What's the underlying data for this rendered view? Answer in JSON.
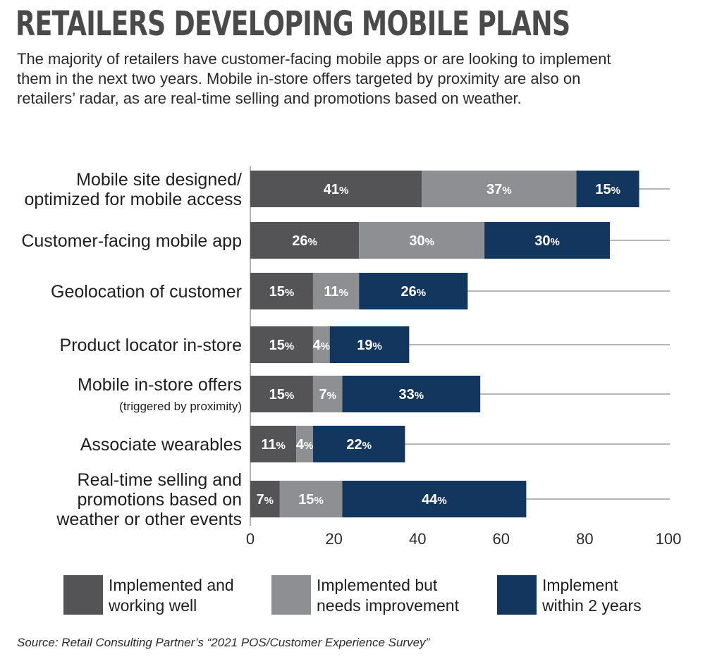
{
  "title": "RETAILERS DEVELOPING MOBILE PLANS",
  "subtitle": "The majority of retailers have customer-facing mobile apps or are looking to implement them in the next two years. Mobile in-store offers targeted by proximity are also on retailers’ radar, as are real-time selling and promotions based on weather.",
  "source": "Source: Retail Consulting Partner’s “2021 POS/Customer Experience Survey”",
  "chart_data": {
    "type": "bar",
    "orientation": "horizontal",
    "stacked": true,
    "categories": [
      "Mobile site designed/ optimized for mobile access",
      "Customer-facing mobile app",
      "Geolocation of customer",
      "Product locator in-store",
      "Mobile in-store offers (triggered by proximity)",
      "Associate wearables",
      "Real-time selling and promotions based on weather or other events"
    ],
    "category_lines": [
      [
        "Mobile site designed/",
        "optimized for mobile access"
      ],
      [
        "Customer-facing mobile app"
      ],
      [
        "Geolocation of customer"
      ],
      [
        "Product locator in-store"
      ],
      [
        "Mobile in-store offers",
        "(triggered by proximity)"
      ],
      [
        "Associate wearables"
      ],
      [
        "Real-time selling and",
        "promotions based on",
        "weather or other events"
      ]
    ],
    "series": [
      {
        "name": "Implemented and working well",
        "color": "#545456",
        "values": [
          41,
          26,
          15,
          15,
          15,
          11,
          7
        ]
      },
      {
        "name": "Implemented but needs improvement",
        "color": "#8e8f92",
        "values": [
          37,
          30,
          11,
          4,
          7,
          4,
          15
        ]
      },
      {
        "name": "Implement within 2 years",
        "color": "#13365f",
        "values": [
          15,
          30,
          26,
          19,
          33,
          22,
          44
        ]
      }
    ],
    "value_suffix": "%",
    "xlim": [
      0,
      100
    ],
    "xticks": [
      0,
      20,
      40,
      60,
      80,
      100
    ],
    "grid": "horizontal lines per row",
    "legend_position": "bottom"
  },
  "legend": [
    {
      "lines": [
        "Implemented and",
        "working well"
      ],
      "color": "#545456"
    },
    {
      "lines": [
        "Implemented but",
        "needs improvement"
      ],
      "color": "#8e8f92"
    },
    {
      "lines": [
        "Implement",
        "within 2 years"
      ],
      "color": "#13365f"
    }
  ]
}
